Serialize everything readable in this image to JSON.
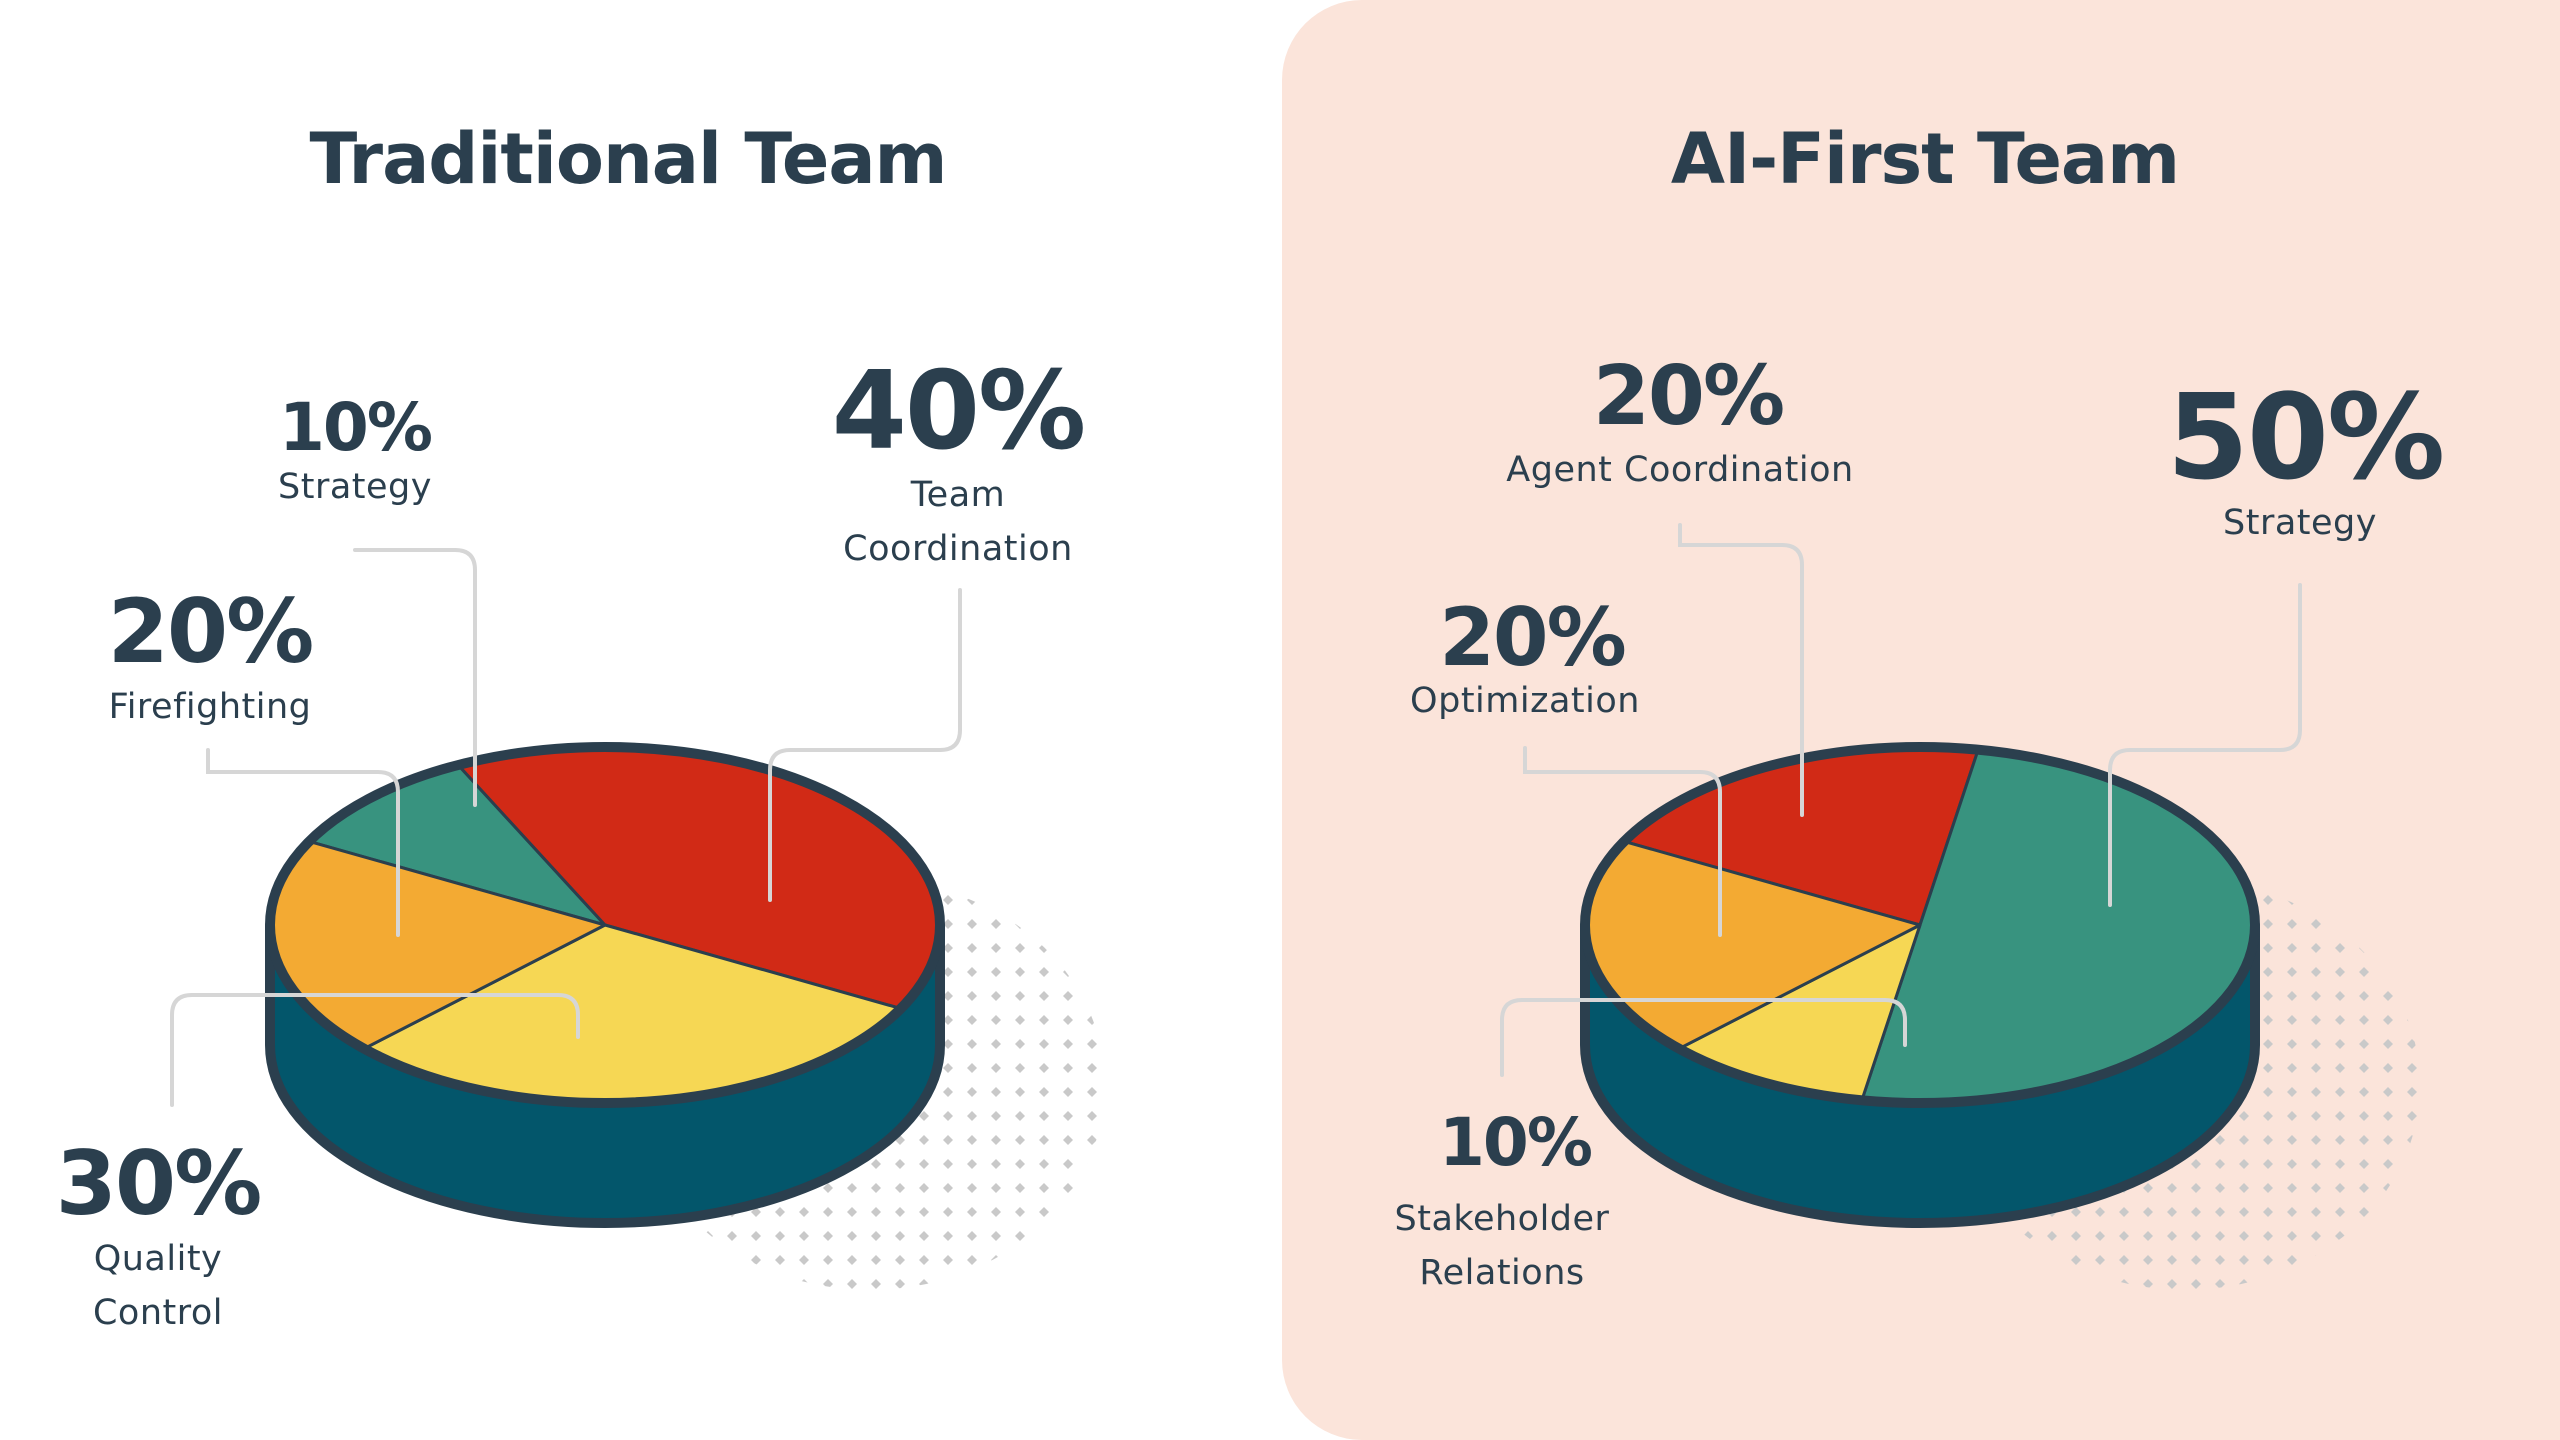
{
  "colors": {
    "red": "#d12a16",
    "green": "#38937f",
    "orange": "#f3aa33",
    "yellow": "#f6d754",
    "rim": "#03566b",
    "outline": "#2b3f4e",
    "panel_right": "#fbe4da"
  },
  "chart_data": [
    {
      "type": "pie",
      "title": "Traditional Team",
      "slices": [
        {
          "label": "Strategy",
          "value": 10,
          "value_label": "10%",
          "color": "#38937f"
        },
        {
          "label": "Team\nCoordination",
          "value": 40,
          "value_label": "40%",
          "color": "#d12a16"
        },
        {
          "label": "Quality\nControl",
          "value": 30,
          "value_label": "30%",
          "color": "#f6d754"
        },
        {
          "label": "Firefighting",
          "value": 20,
          "value_label": "20%",
          "color": "#f3aa33"
        }
      ]
    },
    {
      "type": "pie",
      "title": "AI-First Team",
      "slices": [
        {
          "label": "Agent Coordination",
          "value": 20,
          "value_label": "20%",
          "color": "#d12a16"
        },
        {
          "label": "Strategy",
          "value": 50,
          "value_label": "50%",
          "color": "#38937f"
        },
        {
          "label": "Stakeholder\nRelations",
          "value": 10,
          "value_label": "10%",
          "color": "#f6d754"
        },
        {
          "label": "Optimization",
          "value": 20,
          "value_label": "20%",
          "color": "#f3aa33"
        }
      ]
    }
  ]
}
